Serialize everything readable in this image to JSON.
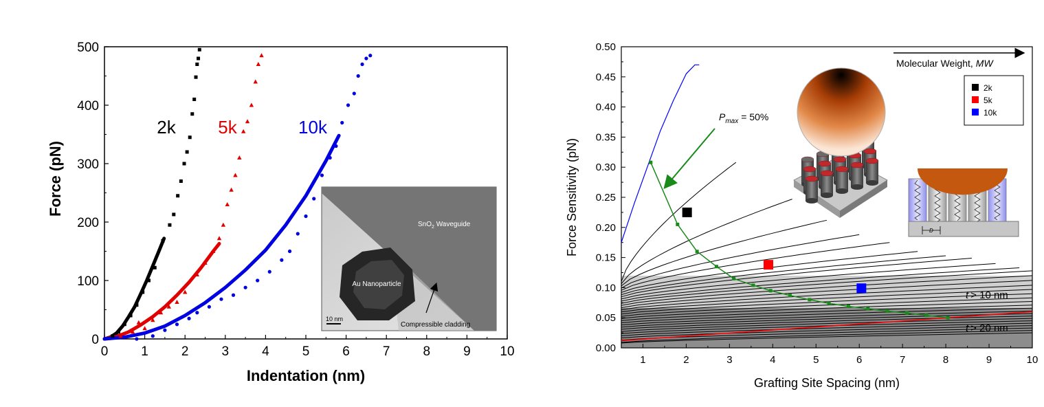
{
  "chart_data": [
    {
      "type": "scatter",
      "xlabel": "Indentation (nm)",
      "ylabel": "Force (pN)",
      "xlim": [
        0,
        10
      ],
      "ylim": [
        0,
        500
      ],
      "xticks": [
        "0",
        "1",
        "2",
        "3",
        "4",
        "5",
        "6",
        "7",
        "8",
        "9",
        "10"
      ],
      "yticks": [
        "0",
        "100",
        "200",
        "300",
        "400",
        "500"
      ],
      "grid": false,
      "series": [
        {
          "name": "2k",
          "color": "#000000",
          "marker": "square",
          "x": [
            0.2,
            0.35,
            0.5,
            0.65,
            0.8,
            0.95,
            1.1,
            1.25,
            1.45,
            1.62,
            1.72,
            1.82,
            1.9,
            1.98,
            2.05,
            2.12,
            2.18,
            2.23,
            2.27,
            2.3,
            2.33,
            2.36
          ],
          "y": [
            5,
            12,
            25,
            40,
            58,
            80,
            100,
            122,
            168,
            195,
            213,
            245,
            270,
            300,
            320,
            345,
            385,
            410,
            448,
            470,
            480,
            495
          ],
          "fit_x": [
            0,
            0.15,
            0.3,
            0.45,
            0.6,
            0.75,
            0.9,
            1.05,
            1.2,
            1.35,
            1.48
          ],
          "fit_y": [
            0,
            3,
            10,
            22,
            38,
            55,
            77,
            100,
            125,
            150,
            172
          ]
        },
        {
          "name": "5k",
          "color": "#e00000",
          "marker": "triangle",
          "x": [
            0.4,
            0.7,
            0.85,
            1.0,
            1.2,
            1.4,
            1.6,
            1.8,
            2.0,
            2.3,
            2.5,
            2.7,
            2.85,
            2.95,
            3.05,
            3.15,
            3.25,
            3.35,
            3.45,
            3.55,
            3.65,
            3.75,
            3.82,
            3.9
          ],
          "y": [
            5,
            12,
            28,
            18,
            32,
            45,
            55,
            63,
            80,
            110,
            130,
            150,
            172,
            195,
            230,
            255,
            280,
            310,
            355,
            372,
            400,
            440,
            470,
            485
          ],
          "fit_x": [
            0,
            0.3,
            0.6,
            0.9,
            1.2,
            1.5,
            1.8,
            2.1,
            2.4,
            2.7,
            2.85
          ],
          "fit_y": [
            0,
            4,
            12,
            24,
            38,
            55,
            75,
            97,
            122,
            150,
            163
          ]
        },
        {
          "name": "10k",
          "color": "#0000e0",
          "marker": "circle",
          "x": [
            0.8,
            1.2,
            1.5,
            1.8,
            2.1,
            2.3,
            2.6,
            2.9,
            3.2,
            3.5,
            3.8,
            4.1,
            4.4,
            4.6,
            4.8,
            5.0,
            5.2,
            5.4,
            5.6,
            5.75,
            5.9,
            6.05,
            6.2,
            6.3,
            6.4,
            6.5,
            6.6
          ],
          "y": [
            0,
            5,
            15,
            25,
            35,
            45,
            55,
            68,
            75,
            88,
            100,
            115,
            135,
            150,
            180,
            210,
            240,
            280,
            310,
            330,
            370,
            400,
            420,
            450,
            470,
            480,
            485
          ],
          "fit_x": [
            0,
            0.5,
            1.0,
            1.5,
            2.0,
            2.5,
            3.0,
            3.5,
            4.0,
            4.5,
            5.0,
            5.5,
            5.82
          ],
          "fit_y": [
            0,
            3,
            10,
            22,
            40,
            62,
            88,
            118,
            152,
            195,
            245,
            305,
            348
          ]
        }
      ],
      "annotations": [
        "2k",
        "5k",
        "10k"
      ],
      "inset": {
        "labels": [
          "SnO",
          "2",
          " Waveguide",
          "Au Nanoparticle",
          "10 nm",
          "Compressible cladding"
        ]
      }
    },
    {
      "type": "line",
      "xlabel": "Grafting Site Spacing (nm)",
      "ylabel": "Force Sensitivity (pN)",
      "xlim": [
        0.5,
        10
      ],
      "ylim": [
        0,
        0.5
      ],
      "xticks": [
        "1",
        "2",
        "3",
        "4",
        "5",
        "6",
        "7",
        "8",
        "9",
        "10"
      ],
      "yticks": [
        "0.00",
        "0.05",
        "0.10",
        "0.15",
        "0.20",
        "0.25",
        "0.30",
        "0.35",
        "0.40",
        "0.45",
        "0.50"
      ],
      "legend_position": "top-right",
      "legend": [
        {
          "name": "2k",
          "color": "#000000"
        },
        {
          "name": "5k",
          "color": "#ff0000"
        },
        {
          "name": "10k",
          "color": "#0000ff"
        }
      ],
      "markers": [
        {
          "name": "2k",
          "x": 2.02,
          "y": 0.225,
          "color": "#000000"
        },
        {
          "name": "5k",
          "x": 3.9,
          "y": 0.138,
          "color": "#ff0000"
        },
        {
          "name": "10k",
          "x": 6.05,
          "y": 0.099,
          "color": "#0000ff"
        }
      ],
      "pmax_curve": {
        "x": [
          1.18,
          1.8,
          2.25,
          2.7,
          3.1,
          3.55,
          3.95,
          4.4,
          4.85,
          5.3,
          5.75,
          6.2,
          6.65,
          7.1,
          7.55,
          8.05
        ],
        "y": [
          0.308,
          0.205,
          0.16,
          0.135,
          0.115,
          0.104,
          0.095,
          0.087,
          0.08,
          0.074,
          0.069,
          0.065,
          0.061,
          0.058,
          0.054,
          0.05
        ]
      },
      "blue_curve": {
        "x": [
          0.5,
          0.8,
          1.1,
          1.4,
          1.7,
          2.0,
          2.2,
          2.3
        ],
        "y": [
          0.175,
          0.24,
          0.3,
          0.36,
          0.41,
          0.455,
          0.47,
          0.47
        ]
      },
      "red_line": {
        "x": [
          0.5,
          8.05,
          10
        ],
        "y": [
          0.012,
          0.05,
          0.06
        ]
      },
      "shaded_regions": [
        {
          "label_prefix": "t",
          "label_suffix": "> 10 nm",
          "y_range": [
            0.055,
            0.113
          ]
        },
        {
          "label_prefix": "t",
          "label_suffix": "> 20 nm",
          "y_range": [
            0,
            0.055
          ]
        }
      ],
      "pmax_label": {
        "symbol": "P",
        "subscript": "max",
        "value": "= 50%"
      },
      "mw_arrow_label": {
        "text": "Molecular Weight,",
        "italic": "MW"
      },
      "inset_label": "D"
    }
  ]
}
